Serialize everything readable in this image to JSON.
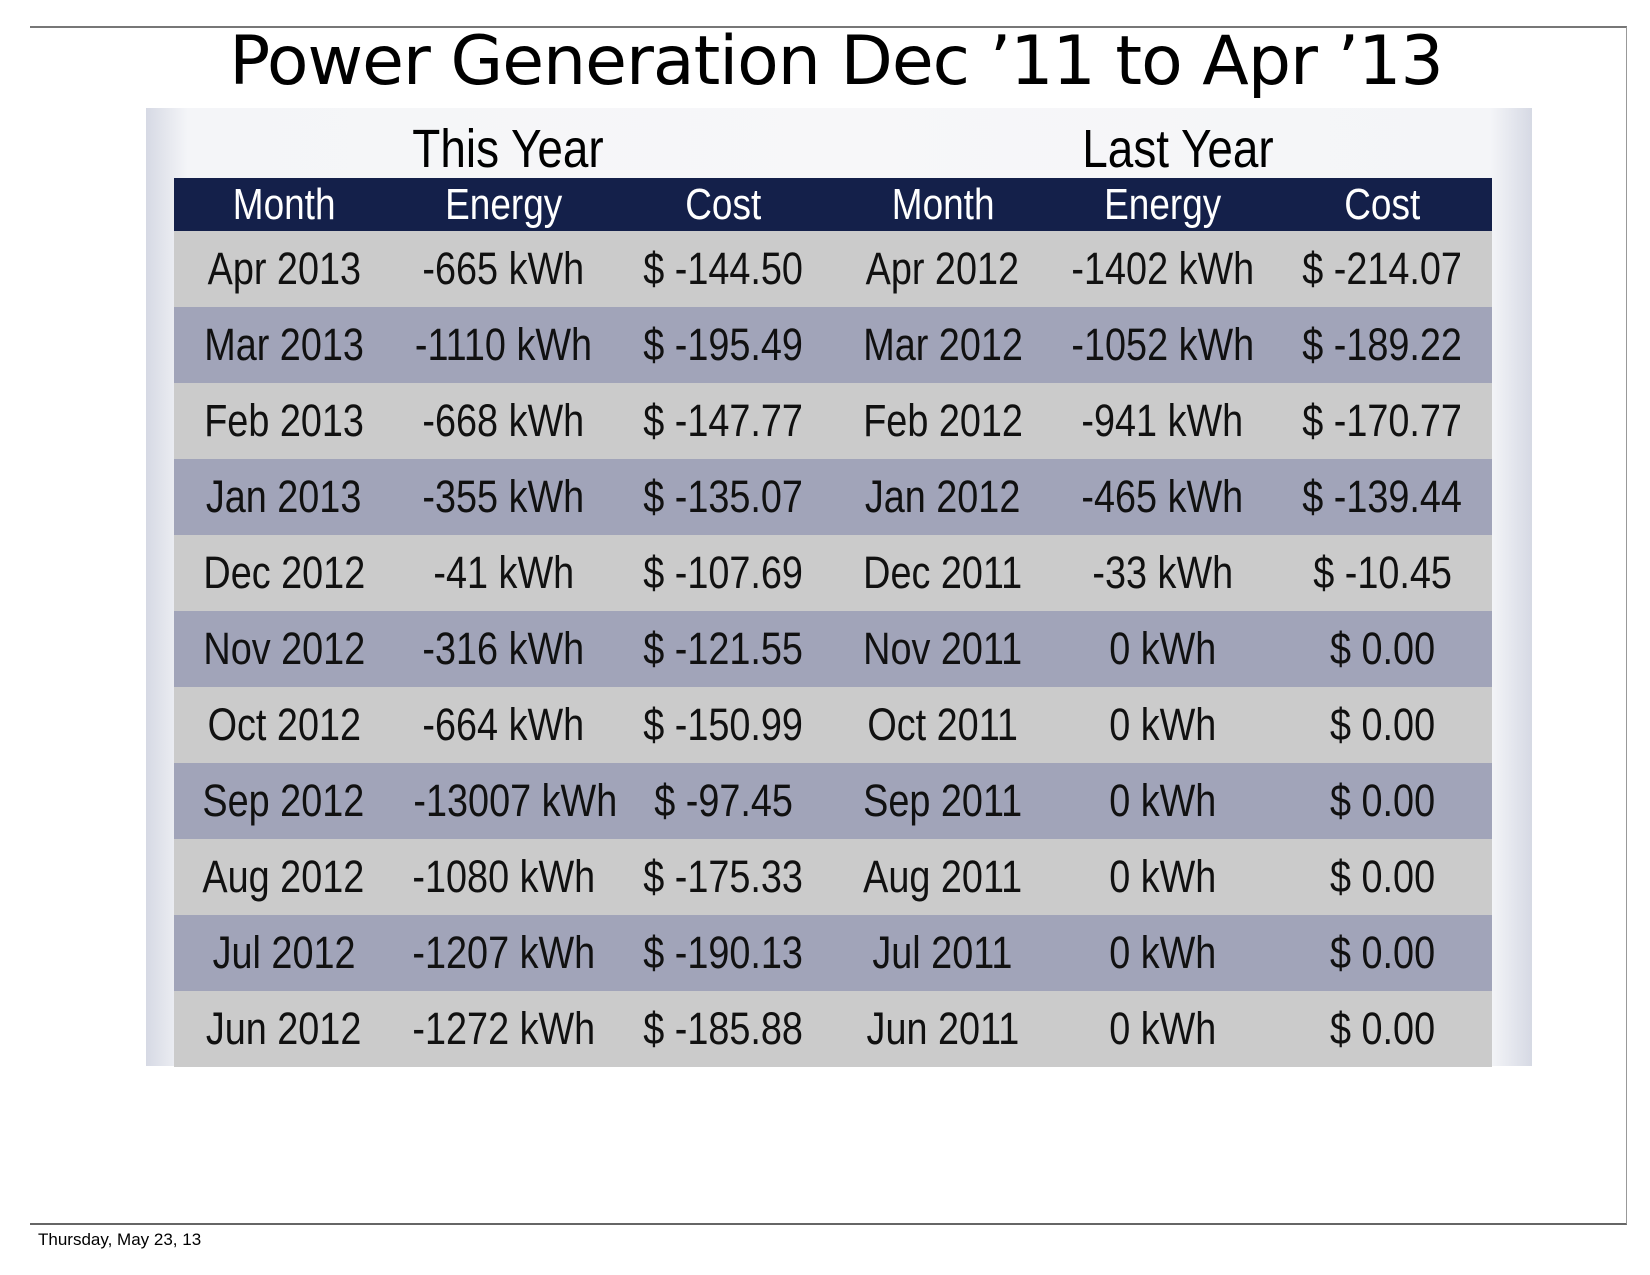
{
  "title": "Power Generation Dec ’11 to Apr ’13",
  "this_year_label": "This Year",
  "last_year_label": "Last Year",
  "headers": [
    "Month",
    "Energy",
    "Cost",
    "Month",
    "Energy",
    "Cost"
  ],
  "rows": [
    [
      "Apr 2013",
      "-665 kWh",
      "$ -144.50",
      "Apr 2012",
      "-1402 kWh",
      "$ -214.07"
    ],
    [
      "Mar 2013",
      "-1110 kWh",
      "$ -195.49",
      "Mar 2012",
      "-1052 kWh",
      "$ -189.22"
    ],
    [
      "Feb 2013",
      "-668 kWh",
      "$ -147.77",
      "Feb 2012",
      "-941 kWh",
      "$ -170.77"
    ],
    [
      "Jan 2013",
      "-355 kWh",
      "$ -135.07",
      "Jan 2012",
      "-465 kWh",
      "$ -139.44"
    ],
    [
      "Dec 2012",
      "-41 kWh",
      "$ -107.69",
      "Dec 2011",
      "-33 kWh",
      "$ -10.45"
    ],
    [
      "Nov 2012",
      "-316 kWh",
      "$ -121.55",
      "Nov 2011",
      "0 kWh",
      "$ 0.00"
    ],
    [
      "Oct 2012",
      "-664 kWh",
      "$ -150.99",
      "Oct 2011",
      "0 kWh",
      "$ 0.00"
    ],
    [
      "Sep 2012",
      "-13007 kWh",
      "$ -97.45",
      "Sep 2011",
      "0 kWh",
      "$ 0.00"
    ],
    [
      "Aug 2012",
      "-1080 kWh",
      "$ -175.33",
      "Aug 2011",
      "0 kWh",
      "$ 0.00"
    ],
    [
      "Jul 2012",
      "-1207 kWh",
      "$ -190.13",
      "Jul 2011",
      "0 kWh",
      "$ 0.00"
    ],
    [
      "Jun 2012",
      "-1272 kWh",
      "$ -185.88",
      "Jun 2011",
      "0 kWh",
      "$ 0.00"
    ]
  ],
  "footer_date": "Thursday, May 23, 13",
  "colors": {
    "header_bg": "#14204a",
    "row_light": "#cbcbcb",
    "row_dark": "#a1a4b9"
  }
}
